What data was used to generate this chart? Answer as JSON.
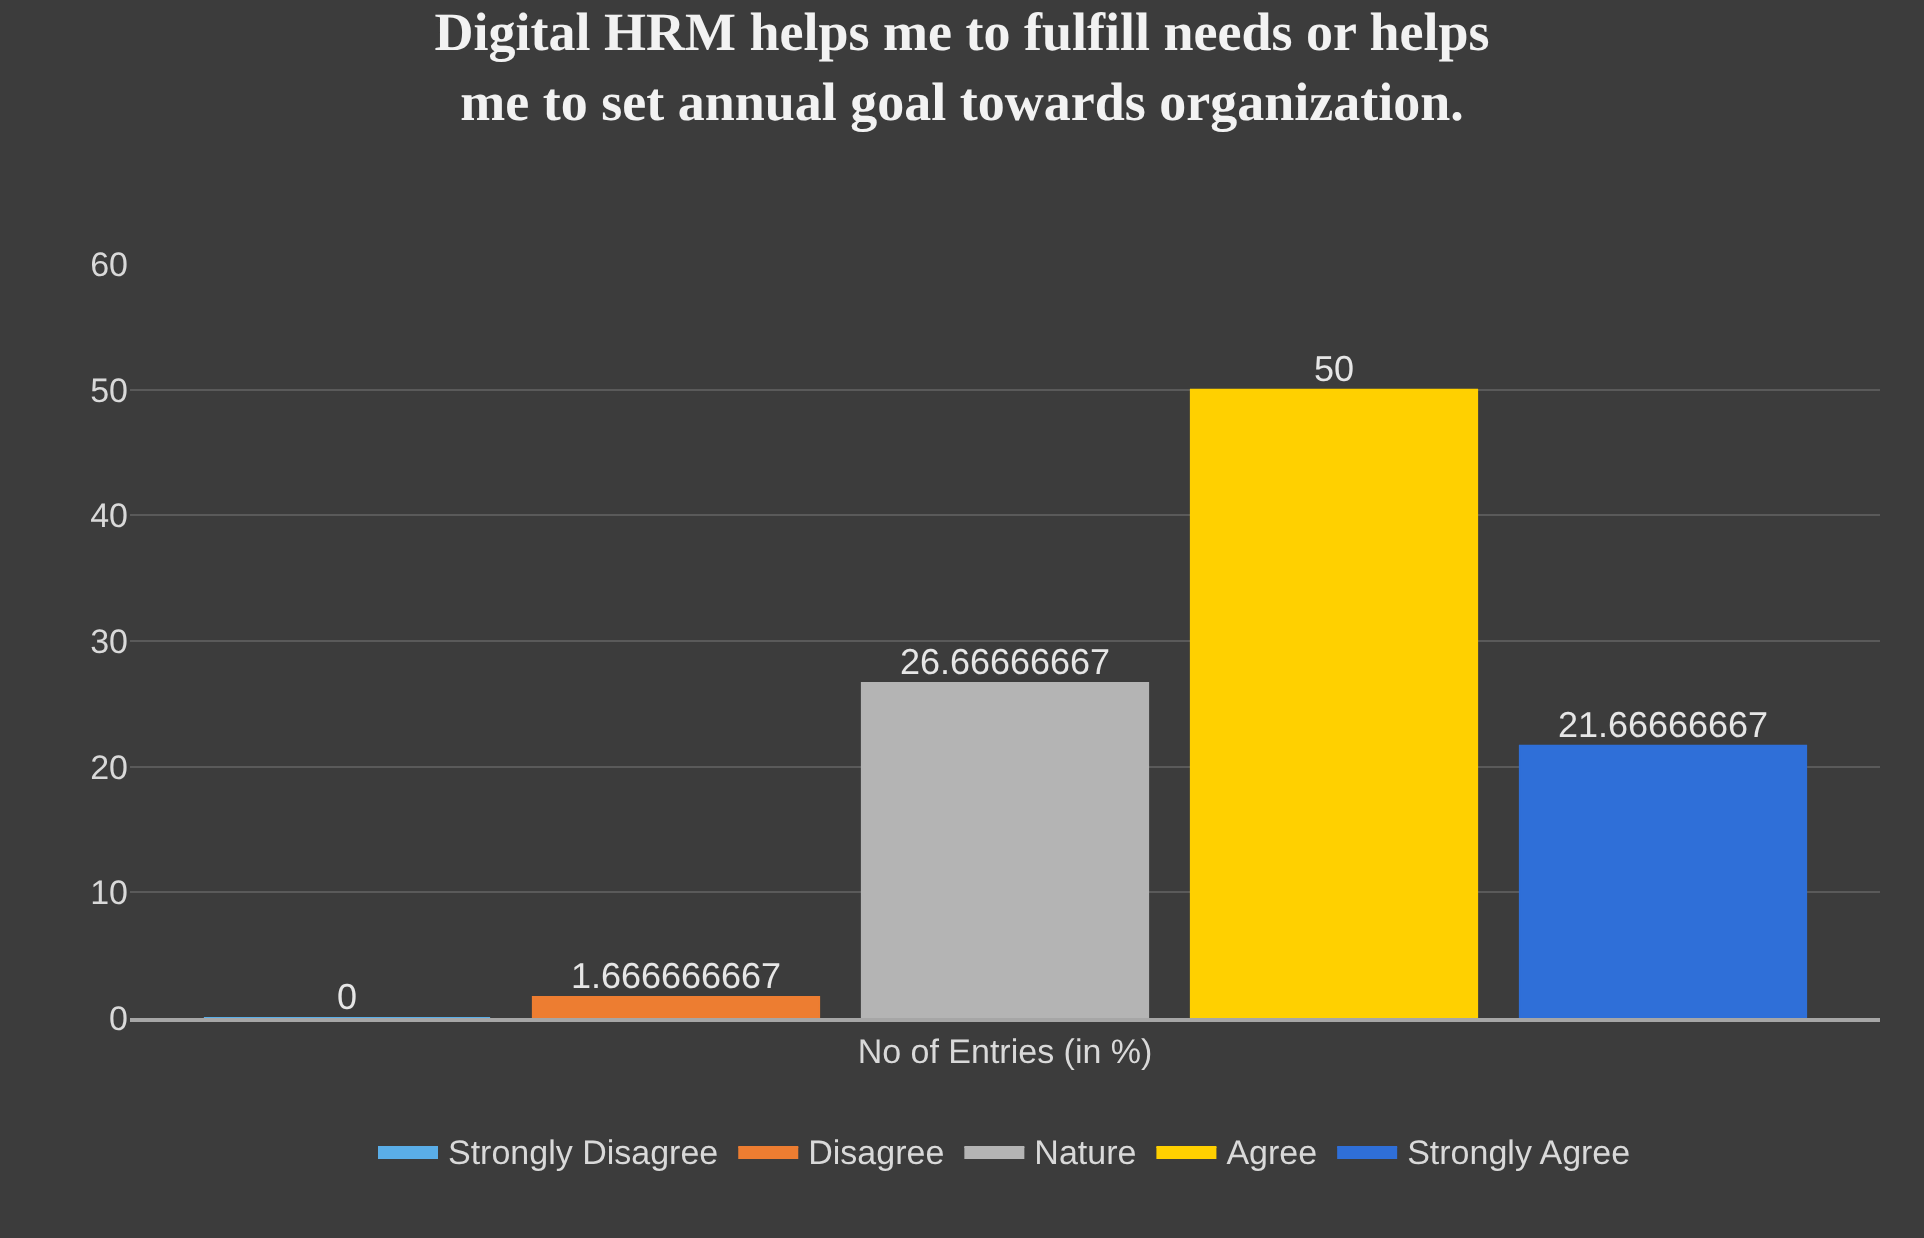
{
  "chart_data": {
    "type": "bar",
    "title": "Digital HRM helps me to fulfill needs or helps\nme to set annual goal towards organization.",
    "categories": [
      "No of Entries (in %)"
    ],
    "series": [
      {
        "name": "Strongly Disagree",
        "color": "#5aaee8",
        "values": [
          0
        ]
      },
      {
        "name": "Disagree",
        "color": "#ed7d31",
        "values": [
          1.666666667
        ]
      },
      {
        "name": "Nature",
        "color": "#b4b4b4",
        "values": [
          26.66666667
        ]
      },
      {
        "name": "Agree",
        "color": "#ffd000",
        "values": [
          50
        ]
      },
      {
        "name": "Strongly Agree",
        "color": "#2f6fd8",
        "values": [
          21.66666667
        ]
      }
    ],
    "ylim": [
      0,
      60
    ],
    "yticks": [
      0,
      10,
      20,
      30,
      40,
      50,
      60
    ],
    "grid": "y",
    "legend": "bottom",
    "data_labels": true
  }
}
